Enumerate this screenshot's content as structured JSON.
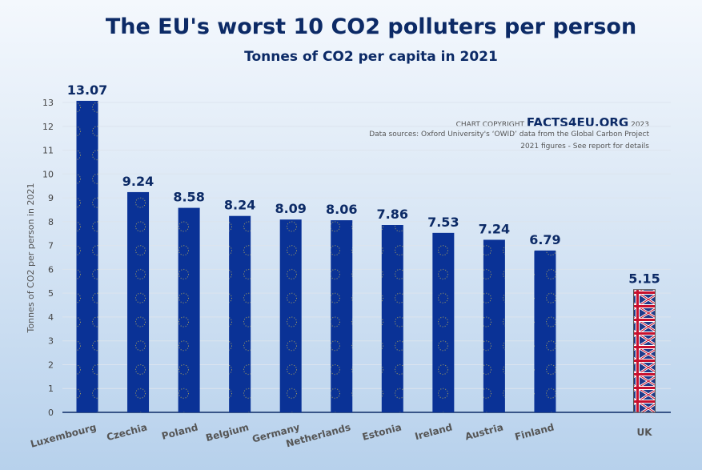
{
  "chart_data": {
    "type": "bar",
    "title": "The EU's worst 10 CO2 polluters per person",
    "subtitle": "Tonnes of CO2 per capita in 2021",
    "ylabel": "Tonnes of CO2 per person in 2021",
    "xlabel": "",
    "ylim": [
      0,
      13
    ],
    "yticks": [
      0,
      1,
      2,
      3,
      4,
      5,
      6,
      7,
      8,
      9,
      10,
      11,
      12,
      13
    ],
    "grid": true,
    "categories": [
      "Luxembourg",
      "Czechia",
      "Poland",
      "Belgium",
      "Germany",
      "Netherlands",
      "Estonia",
      "Ireland",
      "Austria",
      "Finland",
      "UK"
    ],
    "values": [
      13.07,
      9.24,
      8.58,
      8.24,
      8.09,
      8.06,
      7.86,
      7.53,
      7.24,
      6.79,
      5.15
    ],
    "value_labels": [
      "13.07",
      "9.24",
      "8.58",
      "8.24",
      "8.09",
      "8.06",
      "7.86",
      "7.53",
      "7.24",
      "6.79",
      "5.15"
    ],
    "annotations": {
      "copyright_prefix": "CHART COPYRIGHT",
      "brand": "FACTS4EU.ORG",
      "year": "2023",
      "sources": "Data sources: Oxford University's ‘OWID’ data from the Global Carbon Project",
      "note": "2021 figures - See report for details"
    },
    "colors": {
      "eu_bar": "#0a3296",
      "stars": "#d9c24a",
      "title": "#0c2a66",
      "uk_red": "#c8102e"
    }
  }
}
